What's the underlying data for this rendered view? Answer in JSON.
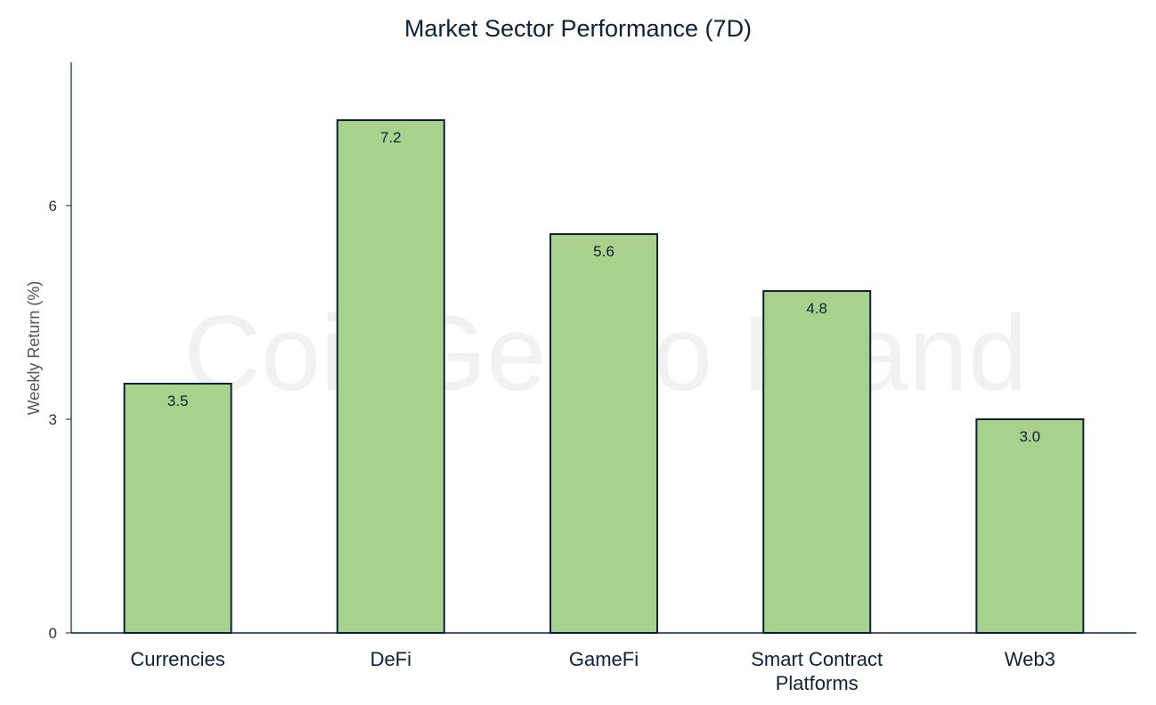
{
  "chart_data": {
    "type": "bar",
    "title": "Market Sector Performance (7D)",
    "xlabel": "",
    "ylabel": "Weekly  Return (%)",
    "categories": [
      "Currencies",
      "DeFi",
      "GameFi",
      "Smart Contract Platforms",
      "Web3"
    ],
    "category_lines": [
      [
        "Currencies"
      ],
      [
        "DeFi"
      ],
      [
        "GameFi"
      ],
      [
        "Smart Contract",
        "Platforms"
      ],
      [
        "Web3"
      ]
    ],
    "values": [
      3.5,
      7.2,
      5.6,
      4.8,
      3.0
    ],
    "data_labels": [
      "3.5",
      "7.2",
      "5.6",
      "4.8",
      "3.0"
    ],
    "yticks": [
      0,
      3,
      6
    ],
    "ylim": [
      0,
      8
    ],
    "grid": false,
    "legend": "none",
    "bar_color": "#a9d18e",
    "bar_edge_color": "#0b2239",
    "watermark": "CoinGecko Brand"
  }
}
